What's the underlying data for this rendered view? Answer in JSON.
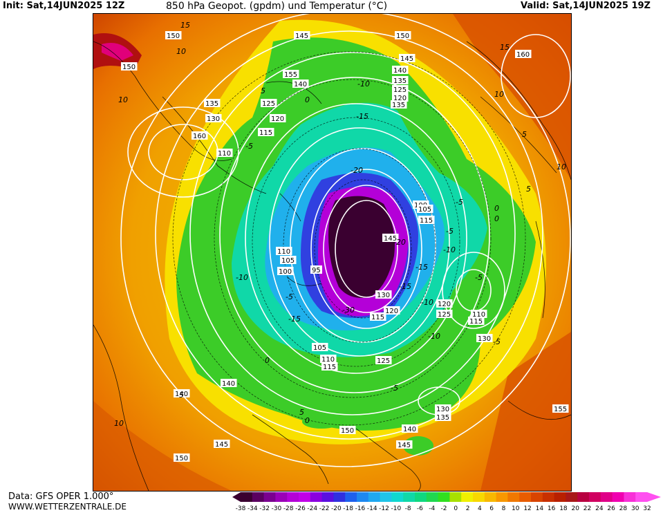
{
  "header": {
    "init": "Init: Sat,14JUN2025 12Z",
    "title": "850 hPa Geopot. (gpdm) und Temperatur (°C)",
    "valid": "Valid: Sat,14JUN2025 19Z"
  },
  "footer": {
    "source": "Data: GFS OPER 1.000°",
    "url": "WWW.WETTERZENTRALE.DE"
  },
  "scale": {
    "ticks": [
      "-38",
      "-34",
      "-32",
      "-30",
      "-28",
      "-26",
      "-24",
      "-22",
      "-20",
      "-18",
      "-16",
      "-14",
      "-12",
      "-10",
      "-8",
      "-6",
      "-4",
      "-2",
      "0",
      "2",
      "4",
      "6",
      "8",
      "10",
      "12",
      "14",
      "16",
      "18",
      "20",
      "22",
      "24",
      "26",
      "28",
      "30",
      "32"
    ],
    "colors": [
      "#3a0030",
      "#5a0060",
      "#7a0090",
      "#9a00b8",
      "#b400d8",
      "#c000e8",
      "#8a00e0",
      "#5a10e0",
      "#3030e0",
      "#1e60ee",
      "#1e88f0",
      "#20a8f0",
      "#20c4e8",
      "#10d8d0",
      "#10d8a8",
      "#10d880",
      "#20d850",
      "#30e020",
      "#a8e000",
      "#f0f000",
      "#f8d800",
      "#f8b800",
      "#f89800",
      "#f07800",
      "#e85c00",
      "#d84400",
      "#c83000",
      "#b82000",
      "#a81818",
      "#b80040",
      "#d00060",
      "#e00088",
      "#f000b0",
      "#f830d8",
      "#ff50f0"
    ]
  },
  "map": {
    "geopotential_labels": [
      {
        "text": "150",
        "kind": "height"
      },
      {
        "text": "150",
        "kind": "height"
      },
      {
        "text": "145",
        "kind": "height"
      },
      {
        "text": "140",
        "kind": "height"
      },
      {
        "text": "135",
        "kind": "height"
      },
      {
        "text": "130",
        "kind": "height"
      },
      {
        "text": "125",
        "kind": "height"
      },
      {
        "text": "120",
        "kind": "height"
      },
      {
        "text": "115",
        "kind": "height"
      },
      {
        "text": "110",
        "kind": "height"
      },
      {
        "text": "160",
        "kind": "height"
      },
      {
        "text": "150",
        "kind": "height"
      },
      {
        "text": "160",
        "kind": "height"
      },
      {
        "text": "155",
        "kind": "height"
      },
      {
        "text": "145",
        "kind": "height"
      },
      {
        "text": "140",
        "kind": "height"
      },
      {
        "text": "135",
        "kind": "height"
      },
      {
        "text": "125",
        "kind": "height"
      },
      {
        "text": "120",
        "kind": "height"
      },
      {
        "text": "135",
        "kind": "height"
      },
      {
        "text": "110",
        "kind": "height"
      },
      {
        "text": "105",
        "kind": "height"
      },
      {
        "text": "100",
        "kind": "height"
      },
      {
        "text": "95",
        "kind": "height"
      },
      {
        "text": "100",
        "kind": "height"
      },
      {
        "text": "105",
        "kind": "height"
      },
      {
        "text": "115",
        "kind": "height"
      },
      {
        "text": "130",
        "kind": "height"
      },
      {
        "text": "120",
        "kind": "height"
      },
      {
        "text": "115",
        "kind": "height"
      },
      {
        "text": "120",
        "kind": "height"
      },
      {
        "text": "125",
        "kind": "height"
      },
      {
        "text": "110",
        "kind": "height"
      },
      {
        "text": "115",
        "kind": "height"
      },
      {
        "text": "130",
        "kind": "height"
      },
      {
        "text": "145",
        "kind": "height"
      },
      {
        "text": "105",
        "kind": "height"
      },
      {
        "text": "110",
        "kind": "height"
      },
      {
        "text": "115",
        "kind": "height"
      },
      {
        "text": "125",
        "kind": "height"
      },
      {
        "text": "140",
        "kind": "height"
      },
      {
        "text": "140",
        "kind": "height"
      },
      {
        "text": "130",
        "kind": "height"
      },
      {
        "text": "135",
        "kind": "height"
      },
      {
        "text": "155",
        "kind": "height"
      },
      {
        "text": "150",
        "kind": "height"
      },
      {
        "text": "140",
        "kind": "height"
      },
      {
        "text": "145",
        "kind": "height"
      },
      {
        "text": "145",
        "kind": "height"
      },
      {
        "text": "150",
        "kind": "height"
      }
    ],
    "temperature_labels": [
      "15",
      "10",
      "5",
      "10",
      "-5",
      "0",
      "-10",
      "-15",
      "-20",
      "10",
      "15",
      "5",
      "10",
      "0",
      "5",
      "-5",
      "0",
      "-5",
      "-10",
      "-15",
      "-20",
      "-15",
      "-10",
      "-30",
      "-15",
      "-10",
      "-5",
      "0",
      "5",
      "10",
      "-5",
      "-10",
      "-5",
      "5",
      "0",
      "-5"
    ]
  }
}
